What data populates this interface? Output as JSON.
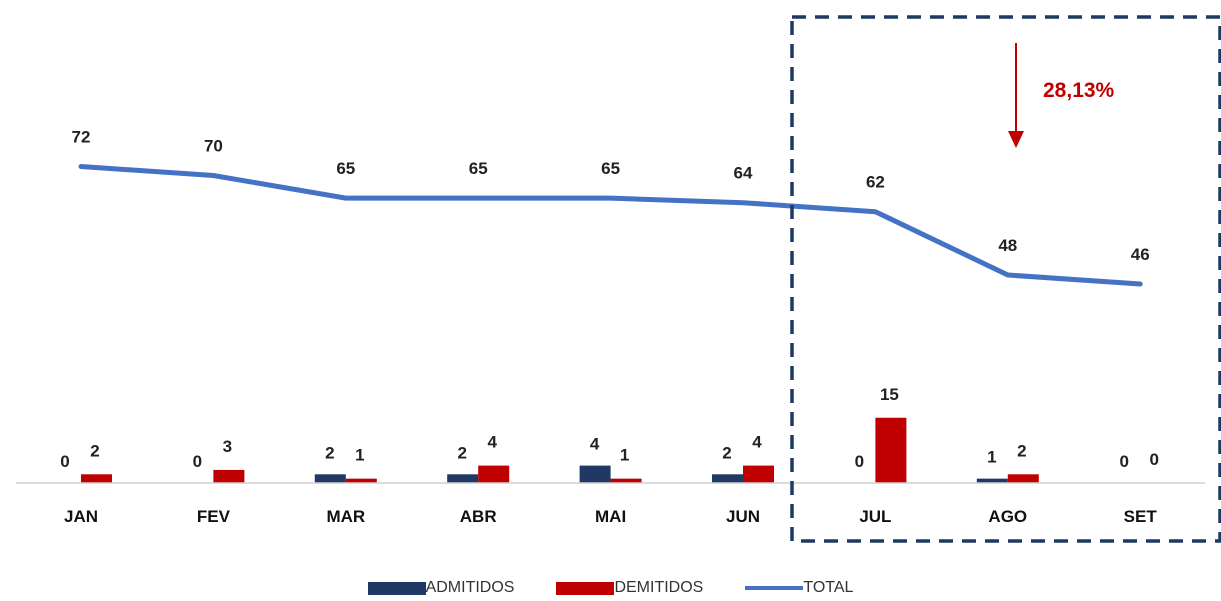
{
  "chart_data": {
    "type": "bar+line",
    "categories": [
      "JAN",
      "FEV",
      "MAR",
      "ABR",
      "MAI",
      "JUN",
      "JUL",
      "AGO",
      "SET"
    ],
    "series": [
      {
        "name": "ADMITIDOS",
        "type": "bar",
        "color": "#1f3864",
        "values": [
          0,
          0,
          2,
          2,
          4,
          2,
          0,
          1,
          0
        ]
      },
      {
        "name": "DEMITIDOS",
        "type": "bar",
        "color": "#c00000",
        "values": [
          2,
          3,
          1,
          4,
          1,
          4,
          15,
          2,
          0
        ]
      },
      {
        "name": "TOTAL",
        "type": "line",
        "color": "#4472c4",
        "values": [
          72,
          70,
          65,
          65,
          65,
          64,
          62,
          48,
          46
        ]
      }
    ],
    "annotation": {
      "text": "28,13%",
      "direction": "down",
      "color": "#c00000",
      "highlighted_categories": [
        "JUL",
        "AGO",
        "SET"
      ]
    },
    "grid": false,
    "legend_position": "bottom"
  }
}
